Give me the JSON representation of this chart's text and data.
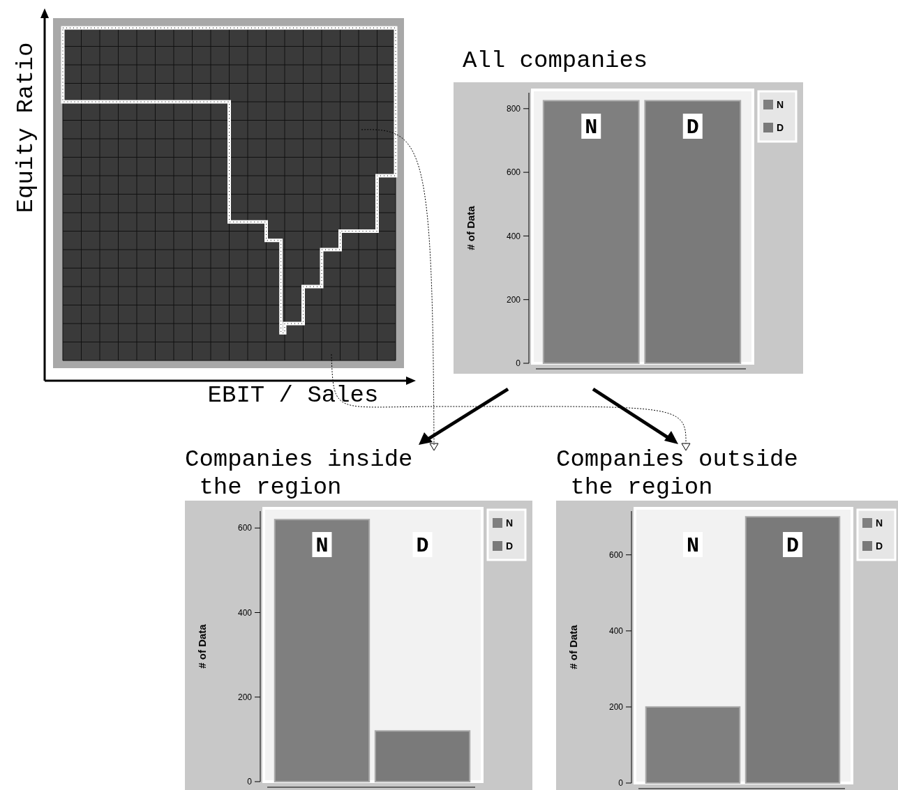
{
  "chart_data": [
    {
      "type": "other",
      "xlabel": "EBIT / Sales",
      "ylabel": "Equity Ratio"
    },
    {
      "type": "bar",
      "title": "All companies",
      "categories": [
        "N",
        "D"
      ],
      "ylabel": "# of Data",
      "ylim": [
        0,
        850
      ],
      "yticks": [
        0,
        200,
        400,
        600,
        800
      ],
      "legend": "right",
      "series": [
        {
          "name": "N",
          "color": "#7f7f7f",
          "values": [
            825,
            null
          ]
        },
        {
          "name": "D",
          "color": "#7a7a7a",
          "values": [
            null,
            825
          ]
        }
      ]
    },
    {
      "type": "bar",
      "title": "Companies inside\n the region",
      "categories": [
        "N",
        "D"
      ],
      "ylabel": "# of Data",
      "ylim": [
        0,
        640
      ],
      "yticks": [
        0,
        200,
        400,
        600
      ],
      "legend": "right",
      "series": [
        {
          "name": "N",
          "color": "#7f7f7f",
          "values": [
            620,
            null
          ]
        },
        {
          "name": "D",
          "color": "#7a7a7a",
          "values": [
            null,
            120
          ]
        }
      ]
    },
    {
      "type": "bar",
      "title": "Companies outside\n the region",
      "categories": [
        "N",
        "D"
      ],
      "ylabel": "# of Data",
      "ylim": [
        0,
        715
      ],
      "yticks": [
        0,
        200,
        400,
        600
      ],
      "legend": "right",
      "series": [
        {
          "name": "N",
          "color": "#7f7f7f",
          "values": [
            200,
            null
          ]
        },
        {
          "name": "D",
          "color": "#7a7a7a",
          "values": [
            null,
            700
          ]
        }
      ]
    }
  ]
}
